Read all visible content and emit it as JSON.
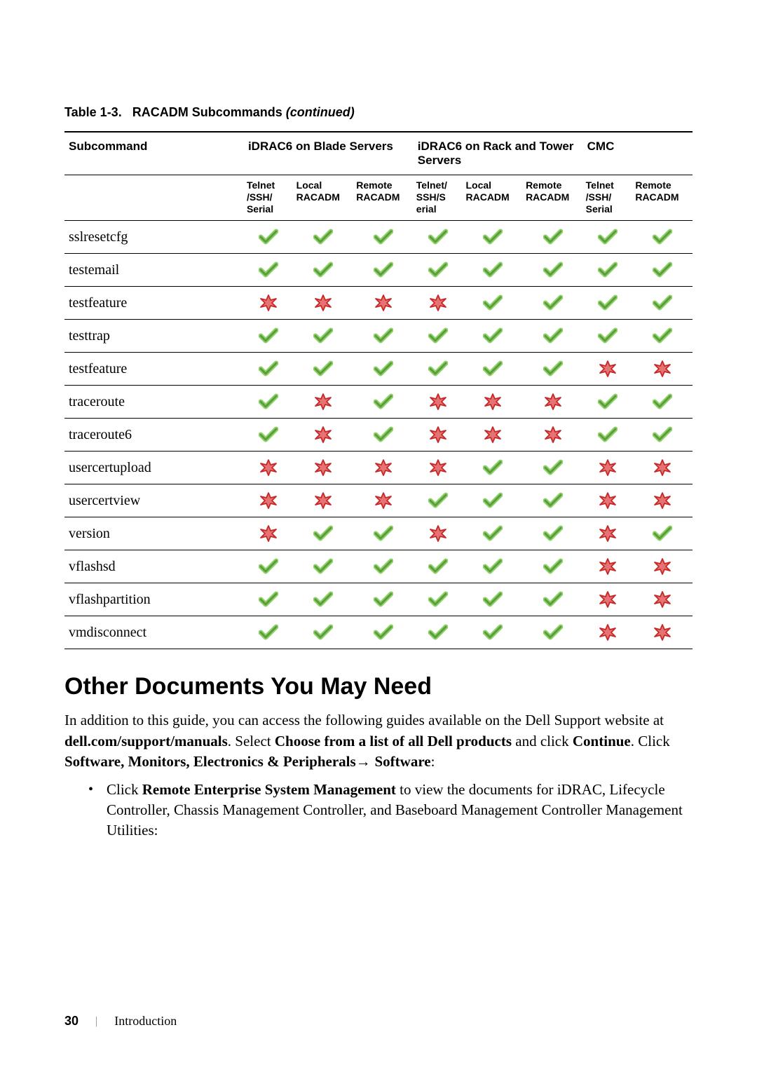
{
  "table_caption_prefix": "Table 1-3.",
  "table_caption_title": "RACADM Subcommands",
  "table_caption_suffix": "(continued)",
  "icons": {
    "yes_stroke": "#5a9e3a",
    "yes_fill": "#8fd16b",
    "no_stroke": "#c62828",
    "no_fill": "#e57373"
  },
  "headers": {
    "subcommand": "Subcommand",
    "group1": "iDRAC6 on Blade Servers",
    "group2": "iDRAC6 on Rack and Tower Servers",
    "group3": "CMC",
    "col1": "Telnet/SSH/Serial",
    "col2": "Local RACADM",
    "col3": "Remote RACADM",
    "col4": "Telnet/SSH/Serial",
    "col5": "Local RACADM",
    "col6": "Remote RACADM",
    "col7": "Telnet/SSH/Serial",
    "col8": "Remote RACADM"
  },
  "rows": [
    {
      "name": "sslresetcfg",
      "v": [
        "y",
        "y",
        "y",
        "y",
        "y",
        "y",
        "y",
        "y"
      ]
    },
    {
      "name": "testemail",
      "v": [
        "y",
        "y",
        "y",
        "y",
        "y",
        "y",
        "y",
        "y"
      ]
    },
    {
      "name": "testfeature",
      "v": [
        "n",
        "n",
        "n",
        "n",
        "y",
        "y",
        "y",
        "y"
      ]
    },
    {
      "name": "testtrap",
      "v": [
        "y",
        "y",
        "y",
        "y",
        "y",
        "y",
        "y",
        "y"
      ]
    },
    {
      "name": "testfeature",
      "v": [
        "y",
        "y",
        "y",
        "y",
        "y",
        "y",
        "n",
        "n"
      ]
    },
    {
      "name": "traceroute",
      "v": [
        "y",
        "n",
        "y",
        "n",
        "n",
        "n",
        "y",
        "y"
      ]
    },
    {
      "name": "traceroute6",
      "v": [
        "y",
        "n",
        "y",
        "n",
        "n",
        "n",
        "y",
        "y"
      ]
    },
    {
      "name": "usercertupload",
      "v": [
        "n",
        "n",
        "n",
        "n",
        "y",
        "y",
        "n",
        "n"
      ]
    },
    {
      "name": "usercertview",
      "v": [
        "n",
        "n",
        "n",
        "y",
        "y",
        "y",
        "n",
        "n"
      ]
    },
    {
      "name": "version",
      "v": [
        "n",
        "y",
        "y",
        "n",
        "y",
        "y",
        "n",
        "y"
      ]
    },
    {
      "name": "vflashsd",
      "v": [
        "y",
        "y",
        "y",
        "y",
        "y",
        "y",
        "n",
        "n"
      ]
    },
    {
      "name": "vflashpartition",
      "v": [
        "y",
        "y",
        "y",
        "y",
        "y",
        "y",
        "n",
        "n"
      ]
    },
    {
      "name": "vmdisconnect",
      "v": [
        "y",
        "y",
        "y",
        "y",
        "y",
        "y",
        "n",
        "n"
      ]
    }
  ],
  "section_heading": "Other Documents You May Need",
  "para": {
    "p1a": "In addition to this guide, you can access the following guides available on the Dell Support website at ",
    "p1b": "dell.com/support/manuals",
    "p1c": ". Select ",
    "p1d": "Choose from a list of all Dell products",
    "p1e": " and click ",
    "p1f": "Continue",
    "p1g": ". Click ",
    "p1h": "Software, Monitors, Electronics & Peripherals",
    "p1i": "→ ",
    "p1j": "Software",
    "p1k": ":"
  },
  "bullet": {
    "b1a": "Click ",
    "b1b": "Remote Enterprise System Management",
    "b1c": " to view the documents for iDRAC, Lifecycle Controller, Chassis Management Controller, and Baseboard Management Controller Management Utilities:"
  },
  "footer": {
    "page": "30",
    "divider": "|",
    "section": "Introduction"
  }
}
